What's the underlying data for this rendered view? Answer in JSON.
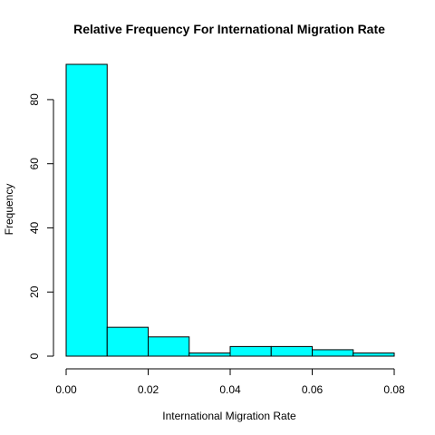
{
  "chart_data": {
    "type": "bar",
    "title": "Relative Frequency For  International  Migration Rate",
    "xlabel": "International  Migration Rate",
    "ylabel": "Frequency",
    "bin_edges": [
      0.0,
      0.01,
      0.02,
      0.03,
      0.04,
      0.05,
      0.06,
      0.07,
      0.08
    ],
    "values": [
      91,
      9,
      6,
      1,
      3,
      3,
      2,
      1
    ],
    "xlim": [
      0.0,
      0.08
    ],
    "ylim": [
      0,
      91
    ],
    "x_ticks": [
      0.0,
      0.02,
      0.04,
      0.06,
      0.08
    ],
    "x_tick_labels": [
      "0.00",
      "0.02",
      "0.04",
      "0.06",
      "0.08"
    ],
    "y_ticks": [
      0,
      20,
      40,
      60,
      80
    ],
    "y_tick_labels": [
      "0",
      "20",
      "40",
      "60",
      "80"
    ],
    "grid": false,
    "bar_color": "#00FFFF",
    "edge_color": "#000000"
  }
}
